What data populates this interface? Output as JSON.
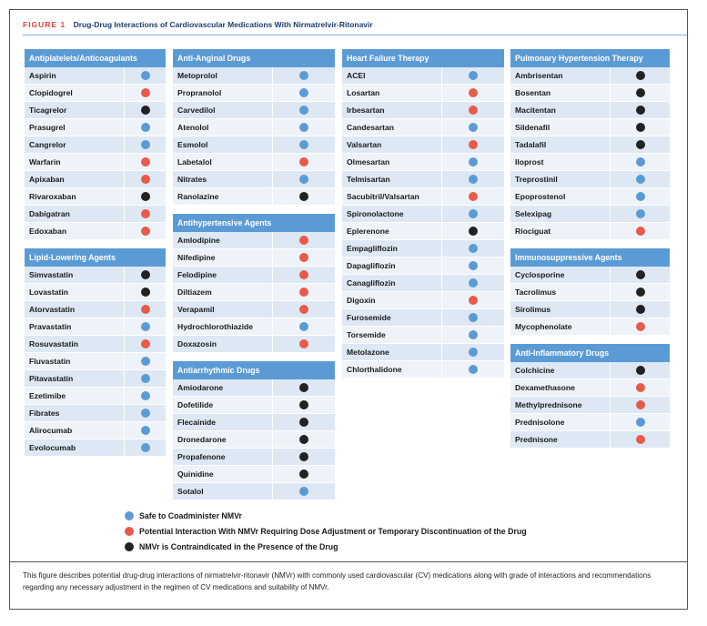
{
  "figure": {
    "label": "FIGURE 1",
    "title": "Drug-Drug Interactions of Cardiovascular Medications With Nirmatrelvir-Ritonavir"
  },
  "colors": {
    "safe": "#5b9bd5",
    "caution": "#e85a4a",
    "contra": "#222222",
    "header": "#5b9bd5"
  },
  "columns": [
    [
      {
        "name": "Antiplatelets/Anticoagulants",
        "drugs": [
          {
            "name": "Aspirin",
            "status": "safe"
          },
          {
            "name": "Clopidogrel",
            "status": "caution"
          },
          {
            "name": "Ticagrelor",
            "status": "contra"
          },
          {
            "name": "Prasugrel",
            "status": "safe"
          },
          {
            "name": "Cangrelor",
            "status": "safe"
          },
          {
            "name": "Warfarin",
            "status": "caution"
          },
          {
            "name": "Apixaban",
            "status": "caution"
          },
          {
            "name": "Rivaroxaban",
            "status": "contra"
          },
          {
            "name": "Dabigatran",
            "status": "caution"
          },
          {
            "name": "Edoxaban",
            "status": "caution"
          }
        ]
      },
      {
        "name": "Lipid-Lowering Agents",
        "drugs": [
          {
            "name": "Simvastatin",
            "status": "contra"
          },
          {
            "name": "Lovastatin",
            "status": "contra"
          },
          {
            "name": "Atorvastatin",
            "status": "caution"
          },
          {
            "name": "Pravastatin",
            "status": "safe"
          },
          {
            "name": "Rosuvastatin",
            "status": "caution"
          },
          {
            "name": "Fluvastatin",
            "status": "safe"
          },
          {
            "name": "Pitavastatin",
            "status": "safe"
          },
          {
            "name": "Ezetimibe",
            "status": "safe"
          },
          {
            "name": "Fibrates",
            "status": "safe"
          },
          {
            "name": "Alirocumab",
            "status": "safe"
          },
          {
            "name": "Evolocumab",
            "status": "safe"
          }
        ]
      }
    ],
    [
      {
        "name": "Anti-Anginal Drugs",
        "drugs": [
          {
            "name": "Metoprolol",
            "status": "safe"
          },
          {
            "name": "Propranolol",
            "status": "safe"
          },
          {
            "name": "Carvedilol",
            "status": "safe"
          },
          {
            "name": "Atenolol",
            "status": "safe"
          },
          {
            "name": "Esmolol",
            "status": "safe"
          },
          {
            "name": "Labetalol",
            "status": "caution"
          },
          {
            "name": "Nitrates",
            "status": "safe"
          },
          {
            "name": "Ranolazine",
            "status": "contra"
          }
        ]
      },
      {
        "name": "Antihypertensive Agents",
        "drugs": [
          {
            "name": "Amlodipine",
            "status": "caution"
          },
          {
            "name": "Nifedipine",
            "status": "caution"
          },
          {
            "name": "Felodipine",
            "status": "caution"
          },
          {
            "name": "Diltiazem",
            "status": "caution"
          },
          {
            "name": "Verapamil",
            "status": "caution"
          },
          {
            "name": "Hydrochlorothiazide",
            "status": "safe"
          },
          {
            "name": "Doxazosin",
            "status": "caution"
          }
        ]
      },
      {
        "name": "Antiarrhythmic Drugs",
        "drugs": [
          {
            "name": "Amiodarone",
            "status": "contra"
          },
          {
            "name": "Dofetilide",
            "status": "contra"
          },
          {
            "name": "Flecainide",
            "status": "contra"
          },
          {
            "name": "Dronedarone",
            "status": "contra"
          },
          {
            "name": "Propafenone",
            "status": "contra"
          },
          {
            "name": "Quinidine",
            "status": "contra"
          },
          {
            "name": "Sotalol",
            "status": "safe"
          }
        ]
      }
    ],
    [
      {
        "name": "Heart Failure Therapy",
        "drugs": [
          {
            "name": "ACEI",
            "status": "safe"
          },
          {
            "name": "Losartan",
            "status": "caution"
          },
          {
            "name": "Irbesartan",
            "status": "caution"
          },
          {
            "name": "Candesartan",
            "status": "safe"
          },
          {
            "name": "Valsartan",
            "status": "caution"
          },
          {
            "name": "Olmesartan",
            "status": "safe"
          },
          {
            "name": "Telmisartan",
            "status": "safe"
          },
          {
            "name": "Sacubitril/Valsartan",
            "status": "caution"
          },
          {
            "name": "Spironolactone",
            "status": "safe"
          },
          {
            "name": "Eplerenone",
            "status": "contra"
          },
          {
            "name": "Empagliflozin",
            "status": "safe"
          },
          {
            "name": "Dapagliflozin",
            "status": "safe"
          },
          {
            "name": "Canagliflozin",
            "status": "safe"
          },
          {
            "name": "Digoxin",
            "status": "caution"
          },
          {
            "name": "Furosemide",
            "status": "safe"
          },
          {
            "name": "Torsemide",
            "status": "safe"
          },
          {
            "name": "Metolazone",
            "status": "safe"
          },
          {
            "name": "Chlorthalidone",
            "status": "safe"
          }
        ]
      }
    ],
    [
      {
        "name": "Pulmonary Hypertension Therapy",
        "drugs": [
          {
            "name": "Ambrisentan",
            "status": "contra"
          },
          {
            "name": "Bosentan",
            "status": "contra"
          },
          {
            "name": "Macitentan",
            "status": "contra"
          },
          {
            "name": "Sildenafil",
            "status": "contra"
          },
          {
            "name": "Tadalafil",
            "status": "contra"
          },
          {
            "name": "Iloprost",
            "status": "safe"
          },
          {
            "name": "Treprostinil",
            "status": "safe"
          },
          {
            "name": "Epoprostenol",
            "status": "safe"
          },
          {
            "name": "Selexipag",
            "status": "safe"
          },
          {
            "name": "Riociguat",
            "status": "caution"
          }
        ]
      },
      {
        "name": "Immunosuppressive Agents",
        "drugs": [
          {
            "name": "Cyclosporine",
            "status": "contra"
          },
          {
            "name": "Tacrolimus",
            "status": "contra"
          },
          {
            "name": "Sirolimus",
            "status": "contra"
          },
          {
            "name": "Mycophenolate",
            "status": "caution"
          }
        ]
      },
      {
        "name": "Anti-Inflammatory Drugs",
        "drugs": [
          {
            "name": "Colchicine",
            "status": "contra"
          },
          {
            "name": "Dexamethasone",
            "status": "caution"
          },
          {
            "name": "Methylprednisone",
            "status": "caution"
          },
          {
            "name": "Prednisolone",
            "status": "safe"
          },
          {
            "name": "Prednisone",
            "status": "caution"
          }
        ]
      }
    ]
  ],
  "legend": [
    {
      "status": "safe",
      "text": "Safe to Coadminister NMVr"
    },
    {
      "status": "caution",
      "text": "Potential Interaction With NMVr Requiring Dose Adjustment or Temporary Discontinuation of the Drug"
    },
    {
      "status": "contra",
      "text": "NMVr is Contraindicated in the Presence of the Drug"
    }
  ],
  "caption": "This figure describes potential drug-drug interactions of nirmatrelvir-ritonavir (NMVr) with commonly used cardiovascular (CV) medications along with grade of interactions and recommendations regarding any necessary adjustment in the regimen of CV medications and suitability of NMVr."
}
